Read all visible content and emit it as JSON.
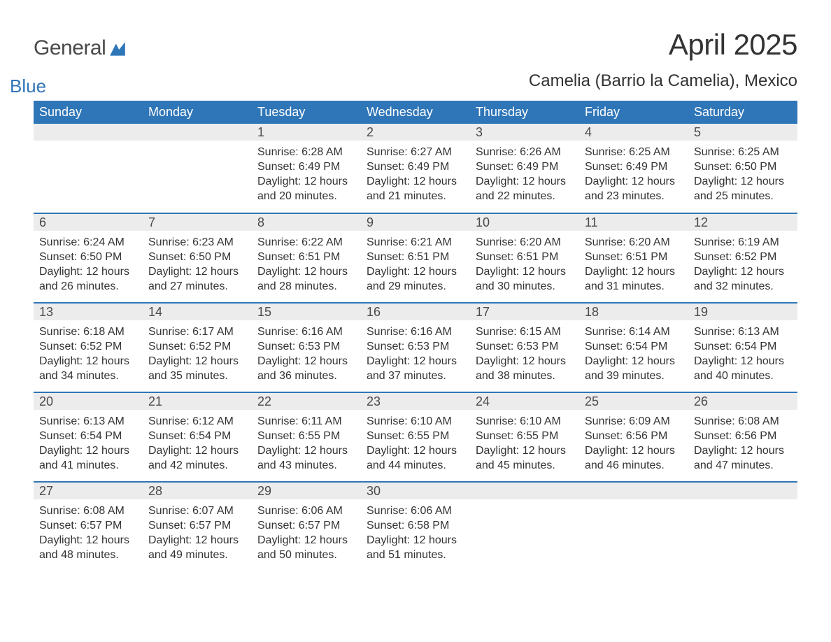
{
  "brand": {
    "general": "General",
    "blue": "Blue",
    "logo_color": "#2f76b8"
  },
  "title": "April 2025",
  "location": "Camelia (Barrio la Camelia), Mexico",
  "colors": {
    "header_bg": "#2f76b8",
    "header_text": "#ffffff",
    "daynum_bg": "#ececec",
    "text": "#333333",
    "row_sep": "#2f76b8",
    "page_bg": "#ffffff"
  },
  "fonts": {
    "title_pt": 42,
    "location_pt": 24,
    "header_pt": 18,
    "body_pt": 16
  },
  "day_headers": [
    "Sunday",
    "Monday",
    "Tuesday",
    "Wednesday",
    "Thursday",
    "Friday",
    "Saturday"
  ],
  "weeks": [
    [
      null,
      null,
      {
        "n": "1",
        "sunrise": "6:28 AM",
        "sunset": "6:49 PM",
        "daylight": "12 hours and 20 minutes."
      },
      {
        "n": "2",
        "sunrise": "6:27 AM",
        "sunset": "6:49 PM",
        "daylight": "12 hours and 21 minutes."
      },
      {
        "n": "3",
        "sunrise": "6:26 AM",
        "sunset": "6:49 PM",
        "daylight": "12 hours and 22 minutes."
      },
      {
        "n": "4",
        "sunrise": "6:25 AM",
        "sunset": "6:49 PM",
        "daylight": "12 hours and 23 minutes."
      },
      {
        "n": "5",
        "sunrise": "6:25 AM",
        "sunset": "6:50 PM",
        "daylight": "12 hours and 25 minutes."
      }
    ],
    [
      {
        "n": "6",
        "sunrise": "6:24 AM",
        "sunset": "6:50 PM",
        "daylight": "12 hours and 26 minutes."
      },
      {
        "n": "7",
        "sunrise": "6:23 AM",
        "sunset": "6:50 PM",
        "daylight": "12 hours and 27 minutes."
      },
      {
        "n": "8",
        "sunrise": "6:22 AM",
        "sunset": "6:51 PM",
        "daylight": "12 hours and 28 minutes."
      },
      {
        "n": "9",
        "sunrise": "6:21 AM",
        "sunset": "6:51 PM",
        "daylight": "12 hours and 29 minutes."
      },
      {
        "n": "10",
        "sunrise": "6:20 AM",
        "sunset": "6:51 PM",
        "daylight": "12 hours and 30 minutes."
      },
      {
        "n": "11",
        "sunrise": "6:20 AM",
        "sunset": "6:51 PM",
        "daylight": "12 hours and 31 minutes."
      },
      {
        "n": "12",
        "sunrise": "6:19 AM",
        "sunset": "6:52 PM",
        "daylight": "12 hours and 32 minutes."
      }
    ],
    [
      {
        "n": "13",
        "sunrise": "6:18 AM",
        "sunset": "6:52 PM",
        "daylight": "12 hours and 34 minutes."
      },
      {
        "n": "14",
        "sunrise": "6:17 AM",
        "sunset": "6:52 PM",
        "daylight": "12 hours and 35 minutes."
      },
      {
        "n": "15",
        "sunrise": "6:16 AM",
        "sunset": "6:53 PM",
        "daylight": "12 hours and 36 minutes."
      },
      {
        "n": "16",
        "sunrise": "6:16 AM",
        "sunset": "6:53 PM",
        "daylight": "12 hours and 37 minutes."
      },
      {
        "n": "17",
        "sunrise": "6:15 AM",
        "sunset": "6:53 PM",
        "daylight": "12 hours and 38 minutes."
      },
      {
        "n": "18",
        "sunrise": "6:14 AM",
        "sunset": "6:54 PM",
        "daylight": "12 hours and 39 minutes."
      },
      {
        "n": "19",
        "sunrise": "6:13 AM",
        "sunset": "6:54 PM",
        "daylight": "12 hours and 40 minutes."
      }
    ],
    [
      {
        "n": "20",
        "sunrise": "6:13 AM",
        "sunset": "6:54 PM",
        "daylight": "12 hours and 41 minutes."
      },
      {
        "n": "21",
        "sunrise": "6:12 AM",
        "sunset": "6:54 PM",
        "daylight": "12 hours and 42 minutes."
      },
      {
        "n": "22",
        "sunrise": "6:11 AM",
        "sunset": "6:55 PM",
        "daylight": "12 hours and 43 minutes."
      },
      {
        "n": "23",
        "sunrise": "6:10 AM",
        "sunset": "6:55 PM",
        "daylight": "12 hours and 44 minutes."
      },
      {
        "n": "24",
        "sunrise": "6:10 AM",
        "sunset": "6:55 PM",
        "daylight": "12 hours and 45 minutes."
      },
      {
        "n": "25",
        "sunrise": "6:09 AM",
        "sunset": "6:56 PM",
        "daylight": "12 hours and 46 minutes."
      },
      {
        "n": "26",
        "sunrise": "6:08 AM",
        "sunset": "6:56 PM",
        "daylight": "12 hours and 47 minutes."
      }
    ],
    [
      {
        "n": "27",
        "sunrise": "6:08 AM",
        "sunset": "6:57 PM",
        "daylight": "12 hours and 48 minutes."
      },
      {
        "n": "28",
        "sunrise": "6:07 AM",
        "sunset": "6:57 PM",
        "daylight": "12 hours and 49 minutes."
      },
      {
        "n": "29",
        "sunrise": "6:06 AM",
        "sunset": "6:57 PM",
        "daylight": "12 hours and 50 minutes."
      },
      {
        "n": "30",
        "sunrise": "6:06 AM",
        "sunset": "6:58 PM",
        "daylight": "12 hours and 51 minutes."
      },
      null,
      null,
      null
    ]
  ],
  "labels": {
    "sunrise": "Sunrise:",
    "sunset": "Sunset:",
    "daylight": "Daylight:"
  }
}
